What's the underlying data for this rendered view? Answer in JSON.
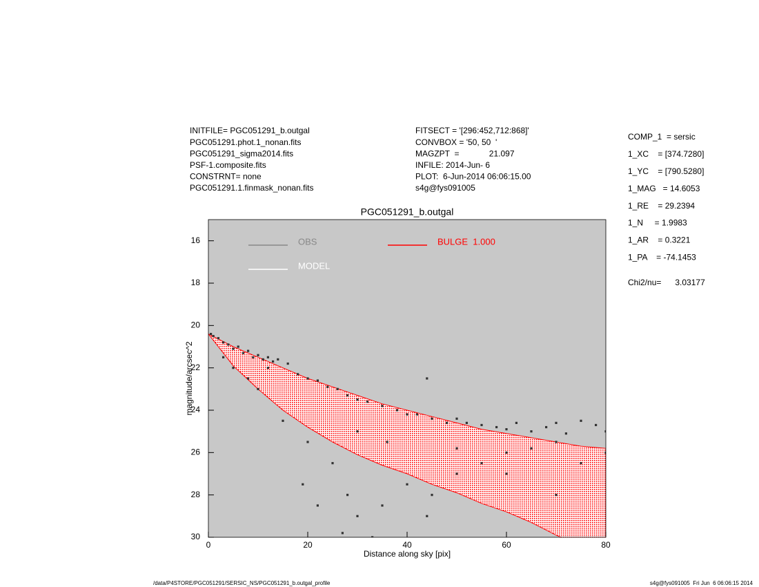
{
  "chart_data": {
    "type": "scatter",
    "title": "PGC051291_b.outgal",
    "xlabel": "Distance along sky [pix]",
    "ylabel": "magnitude/arcsec^2",
    "header_left": [
      "INITFILE= PGC051291_b.outgal",
      "PGC051291.phot.1_nonan.fits",
      "PGC051291_sigma2014.fits",
      "PSF-1.composite.fits",
      "CONSTRNT= none",
      "PGC051291.1.finmask_nonan.fits"
    ],
    "header_middle": [
      "FITSECT = '[296:452,712:868]'",
      "CONVBOX = '50, 50  '",
      "MAGZPT  =             21.097",
      "INFILE: 2014-Jun- 6",
      "PLOT:  6-Jun-2014 06:06:15.00",
      "s4g@fys091005"
    ],
    "params": [
      "COMP_1  = sersic",
      "1_XC    = [374.7280]",
      "1_YC    = [790.5280]",
      "1_MAG   = 14.6053",
      "1_RE    = 29.2394",
      "1_N     = 1.9983",
      "1_AR    = 0.3221",
      "1_PA    = -74.1453"
    ],
    "chi2": "Chi2/nu=      3.03177",
    "footer_left": "/data/P4STORE/PGC051291/SERSIC_NS/PGC051291_b.outgal_profile",
    "footer_right": "s4g@fys091005  Fri Jun  6 06:06:15 2014",
    "xlim": [
      0,
      80
    ],
    "ylim": [
      15,
      30
    ],
    "y_inverted": true,
    "xticks": [
      0,
      20,
      40,
      60,
      80
    ],
    "yticks": [
      16,
      18,
      20,
      22,
      24,
      26,
      28,
      30
    ],
    "background": "#c8c8c8",
    "series": [
      {
        "name": "OBS",
        "color": "#888888",
        "point_color": "#333333",
        "x": [
          0.5,
          1,
          2,
          3,
          4,
          5,
          6,
          7,
          8,
          9,
          10,
          11,
          12,
          13,
          14,
          16,
          18,
          20,
          22,
          24,
          26,
          28,
          30,
          32,
          35,
          38,
          40,
          42,
          44,
          45,
          48,
          50,
          52,
          55,
          58,
          60,
          62,
          65,
          68,
          70,
          72,
          75,
          78,
          80,
          3,
          5,
          8,
          10,
          15,
          20,
          25,
          28,
          30,
          33,
          35,
          40,
          45,
          50,
          55,
          60,
          65,
          70,
          75,
          80,
          19,
          22,
          27,
          44,
          36,
          30,
          50,
          60,
          70,
          12
        ],
        "values": [
          20.4,
          20.5,
          20.6,
          20.8,
          20.9,
          21.1,
          21.0,
          21.3,
          21.2,
          21.5,
          21.4,
          21.6,
          21.5,
          21.7,
          21.6,
          21.8,
          22.3,
          22.5,
          22.6,
          22.9,
          23.0,
          23.3,
          23.5,
          23.6,
          23.8,
          24.0,
          24.2,
          24.2,
          22.5,
          24.4,
          24.6,
          24.4,
          24.6,
          24.7,
          24.8,
          24.9,
          24.6,
          25.0,
          24.8,
          24.6,
          25.1,
          24.5,
          24.7,
          25.0,
          21.5,
          22.0,
          22.5,
          23.0,
          24.5,
          25.5,
          26.5,
          28.0,
          29.0,
          30.0,
          28.5,
          27.5,
          28.0,
          27.0,
          26.5,
          26.0,
          25.8,
          25.5,
          26.5,
          26.0,
          27.5,
          28.5,
          29.8,
          29.0,
          25.5,
          25.0,
          25.8,
          27.0,
          28.0,
          22.0
        ]
      },
      {
        "name": "MODEL",
        "color": "#ffffff",
        "x": [
          0,
          5,
          10,
          15,
          20,
          25,
          30,
          35,
          40,
          45,
          50,
          55,
          60,
          65,
          70,
          75,
          80
        ],
        "values": [
          20.4,
          21.0,
          21.5,
          22.0,
          22.5,
          22.9,
          23.3,
          23.7,
          24.0,
          24.3,
          24.6,
          24.9,
          25.1,
          25.3,
          25.5,
          25.7,
          25.8
        ],
        "values_lower": [
          20.4,
          21.9,
          23.0,
          24.0,
          24.8,
          25.5,
          26.1,
          26.6,
          27.0,
          27.5,
          27.9,
          28.4,
          28.8,
          29.3,
          29.9,
          30.4,
          30.9
        ]
      },
      {
        "name": "BULGE  1.000",
        "color": "#ff0000",
        "x": [
          0,
          5,
          10,
          15,
          20,
          25,
          30,
          35,
          40,
          45,
          50,
          55,
          60,
          65,
          70,
          75,
          80
        ],
        "values": [
          20.4,
          21.0,
          21.5,
          22.0,
          22.5,
          22.9,
          23.3,
          23.7,
          24.0,
          24.3,
          24.6,
          24.9,
          25.1,
          25.3,
          25.5,
          25.7,
          25.8
        ],
        "values_lower": [
          20.4,
          21.9,
          23.0,
          24.0,
          24.8,
          25.5,
          26.1,
          26.6,
          27.0,
          27.5,
          27.9,
          28.4,
          28.8,
          29.3,
          29.9,
          30.4,
          30.9
        ]
      }
    ]
  }
}
